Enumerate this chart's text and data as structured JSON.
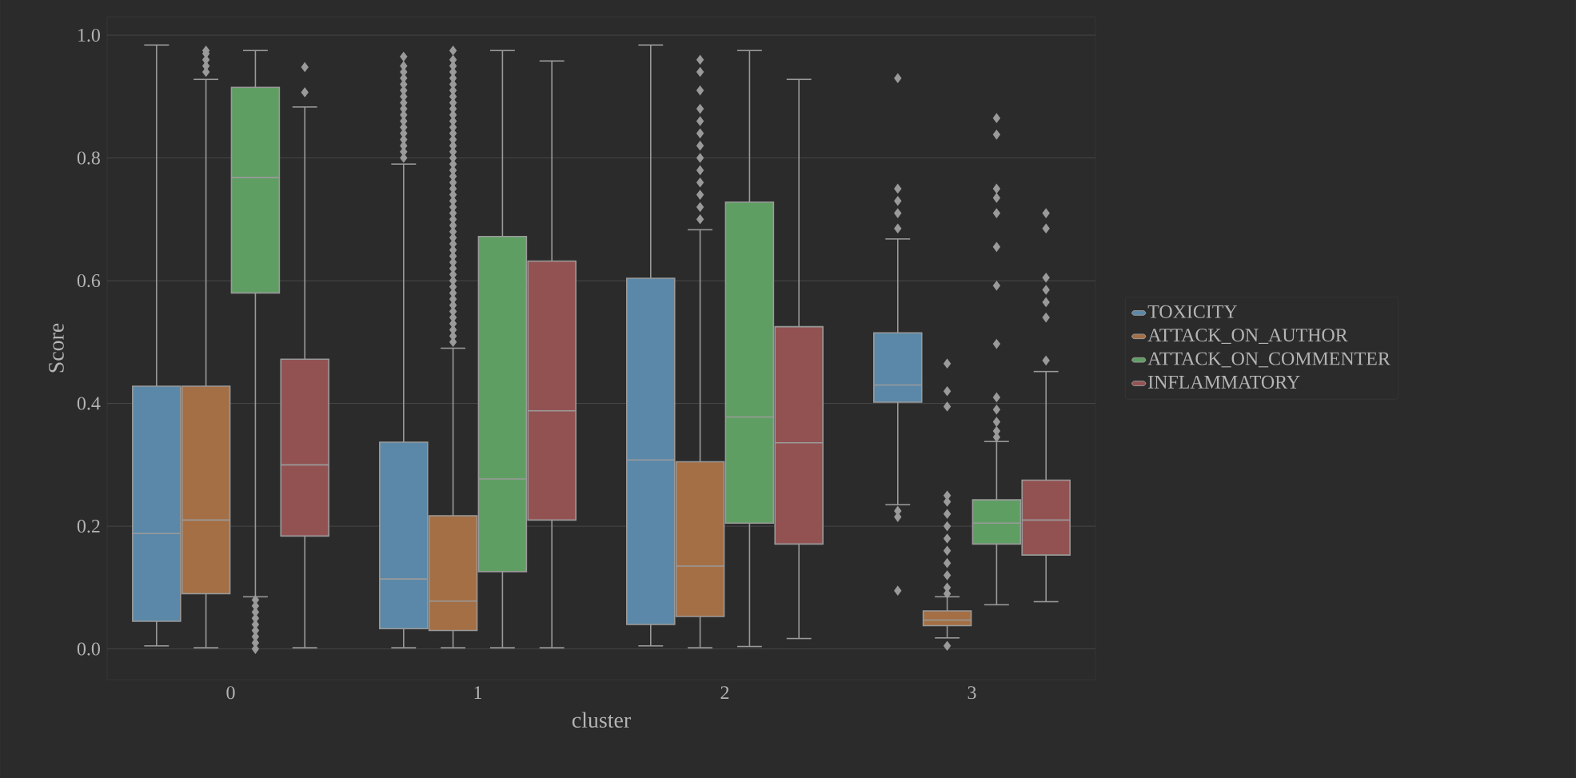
{
  "chart_data": {
    "type": "box",
    "xlabel": "cluster",
    "ylabel": "Score",
    "categories": [
      "0",
      "1",
      "2",
      "3"
    ],
    "ylim": [
      -0.05,
      1.03
    ],
    "yticks": [
      {
        "value": 0,
        "label": "0.0"
      },
      {
        "value": 0.2,
        "label": "0.2"
      },
      {
        "value": 0.4,
        "label": "0.4"
      },
      {
        "value": 0.6,
        "label": "0.6"
      },
      {
        "value": 0.8,
        "label": "0.8"
      },
      {
        "value": 1,
        "label": "1.0"
      }
    ],
    "grid": "y",
    "legend": "right",
    "marker": "diamond",
    "series": [
      {
        "name": "TOXICITY",
        "color": "#5b88a8",
        "boxes": [
          {
            "low": 0.005,
            "q1": 0.045,
            "median": 0.188,
            "q3": 0.428,
            "high": 0.984
          },
          {
            "low": 0.002,
            "q1": 0.033,
            "median": 0.114,
            "q3": 0.337,
            "high": 0.79,
            "outliers": [
              0.8,
              0.81,
              0.82,
              0.83,
              0.84,
              0.85,
              0.86,
              0.87,
              0.88,
              0.89,
              0.9,
              0.91,
              0.92,
              0.93,
              0.94,
              0.95,
              0.965
            ]
          },
          {
            "low": 0.005,
            "q1": 0.04,
            "median": 0.308,
            "q3": 0.604,
            "high": 0.984
          },
          {
            "low": 0.235,
            "q1": 0.402,
            "median": 0.43,
            "q3": 0.515,
            "high": 0.668,
            "outliers": [
              0.93,
              0.75,
              0.73,
              0.71,
              0.685,
              0.225,
              0.215,
              0.095
            ]
          }
        ]
      },
      {
        "name": "ATTACK_ON_AUTHOR",
        "color": "#a46f45",
        "boxes": [
          {
            "low": 0.002,
            "q1": 0.09,
            "median": 0.21,
            "q3": 0.428,
            "high": 0.928,
            "outliers": [
              0.94,
              0.95,
              0.96,
              0.97,
              0.975
            ]
          },
          {
            "low": 0.002,
            "q1": 0.03,
            "median": 0.078,
            "q3": 0.217,
            "high": 0.49,
            "outliers": [
              0.5,
              0.51,
              0.52,
              0.53,
              0.54,
              0.55,
              0.56,
              0.57,
              0.58,
              0.59,
              0.6,
              0.61,
              0.62,
              0.63,
              0.64,
              0.65,
              0.66,
              0.67,
              0.68,
              0.69,
              0.7,
              0.71,
              0.72,
              0.73,
              0.74,
              0.75,
              0.76,
              0.77,
              0.78,
              0.79,
              0.8,
              0.81,
              0.82,
              0.83,
              0.84,
              0.85,
              0.86,
              0.87,
              0.88,
              0.89,
              0.9,
              0.91,
              0.92,
              0.93,
              0.94,
              0.95,
              0.96,
              0.975
            ]
          },
          {
            "low": 0.002,
            "q1": 0.053,
            "median": 0.135,
            "q3": 0.305,
            "high": 0.683,
            "outliers": [
              0.7,
              0.72,
              0.74,
              0.76,
              0.78,
              0.8,
              0.82,
              0.84,
              0.86,
              0.88,
              0.91,
              0.94,
              0.96
            ]
          },
          {
            "low": 0.018,
            "q1": 0.038,
            "median": 0.047,
            "q3": 0.062,
            "high": 0.085,
            "outliers": [
              0.465,
              0.42,
              0.395,
              0.25,
              0.24,
              0.22,
              0.2,
              0.18,
              0.16,
              0.14,
              0.12,
              0.1,
              0.09,
              0.005
            ]
          }
        ]
      },
      {
        "name": "ATTACK_ON_COMMENTER",
        "color": "#5f9e63",
        "boxes": [
          {
            "low": 0.085,
            "q1": 0.58,
            "median": 0.768,
            "q3": 0.915,
            "high": 0.975,
            "outliers": [
              0.0,
              0.01,
              0.02,
              0.03,
              0.04,
              0.05,
              0.06,
              0.07,
              0.08
            ]
          },
          {
            "low": 0.002,
            "q1": 0.126,
            "median": 0.277,
            "q3": 0.672,
            "high": 0.975
          },
          {
            "low": 0.004,
            "q1": 0.205,
            "median": 0.378,
            "q3": 0.728,
            "high": 0.975
          },
          {
            "low": 0.072,
            "q1": 0.171,
            "median": 0.205,
            "q3": 0.243,
            "high": 0.338,
            "outliers": [
              0.865,
              0.838,
              0.75,
              0.735,
              0.71,
              0.655,
              0.592,
              0.497,
              0.41,
              0.39,
              0.37,
              0.355,
              0.345
            ]
          }
        ]
      },
      {
        "name": "INFLAMMATORY",
        "color": "#935252",
        "boxes": [
          {
            "low": 0.002,
            "q1": 0.184,
            "median": 0.3,
            "q3": 0.472,
            "high": 0.883,
            "outliers": [
              0.907,
              0.948
            ]
          },
          {
            "low": 0.002,
            "q1": 0.21,
            "median": 0.388,
            "q3": 0.632,
            "high": 0.958
          },
          {
            "low": 0.017,
            "q1": 0.171,
            "median": 0.336,
            "q3": 0.525,
            "high": 0.928
          },
          {
            "low": 0.077,
            "q1": 0.153,
            "median": 0.21,
            "q3": 0.275,
            "high": 0.452,
            "outliers": [
              0.71,
              0.685,
              0.605,
              0.585,
              0.565,
              0.54,
              0.47
            ]
          }
        ]
      }
    ]
  }
}
